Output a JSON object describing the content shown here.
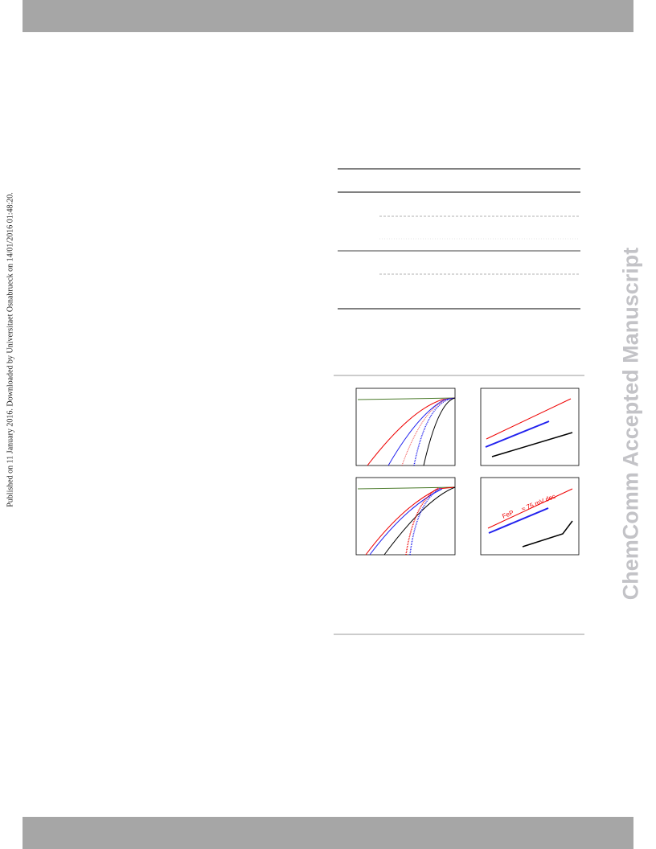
{
  "sidebar": {
    "text": "Published on 11 January 2016. Downloaded by Universitaet Osnabrueck on 14/01/2016 01:48:20."
  },
  "watermark": {
    "text": "ChemComm Accepted Manuscript"
  },
  "figure": {
    "annotations": [
      "FeP",
      "≈ 75 mV dec"
    ]
  }
}
